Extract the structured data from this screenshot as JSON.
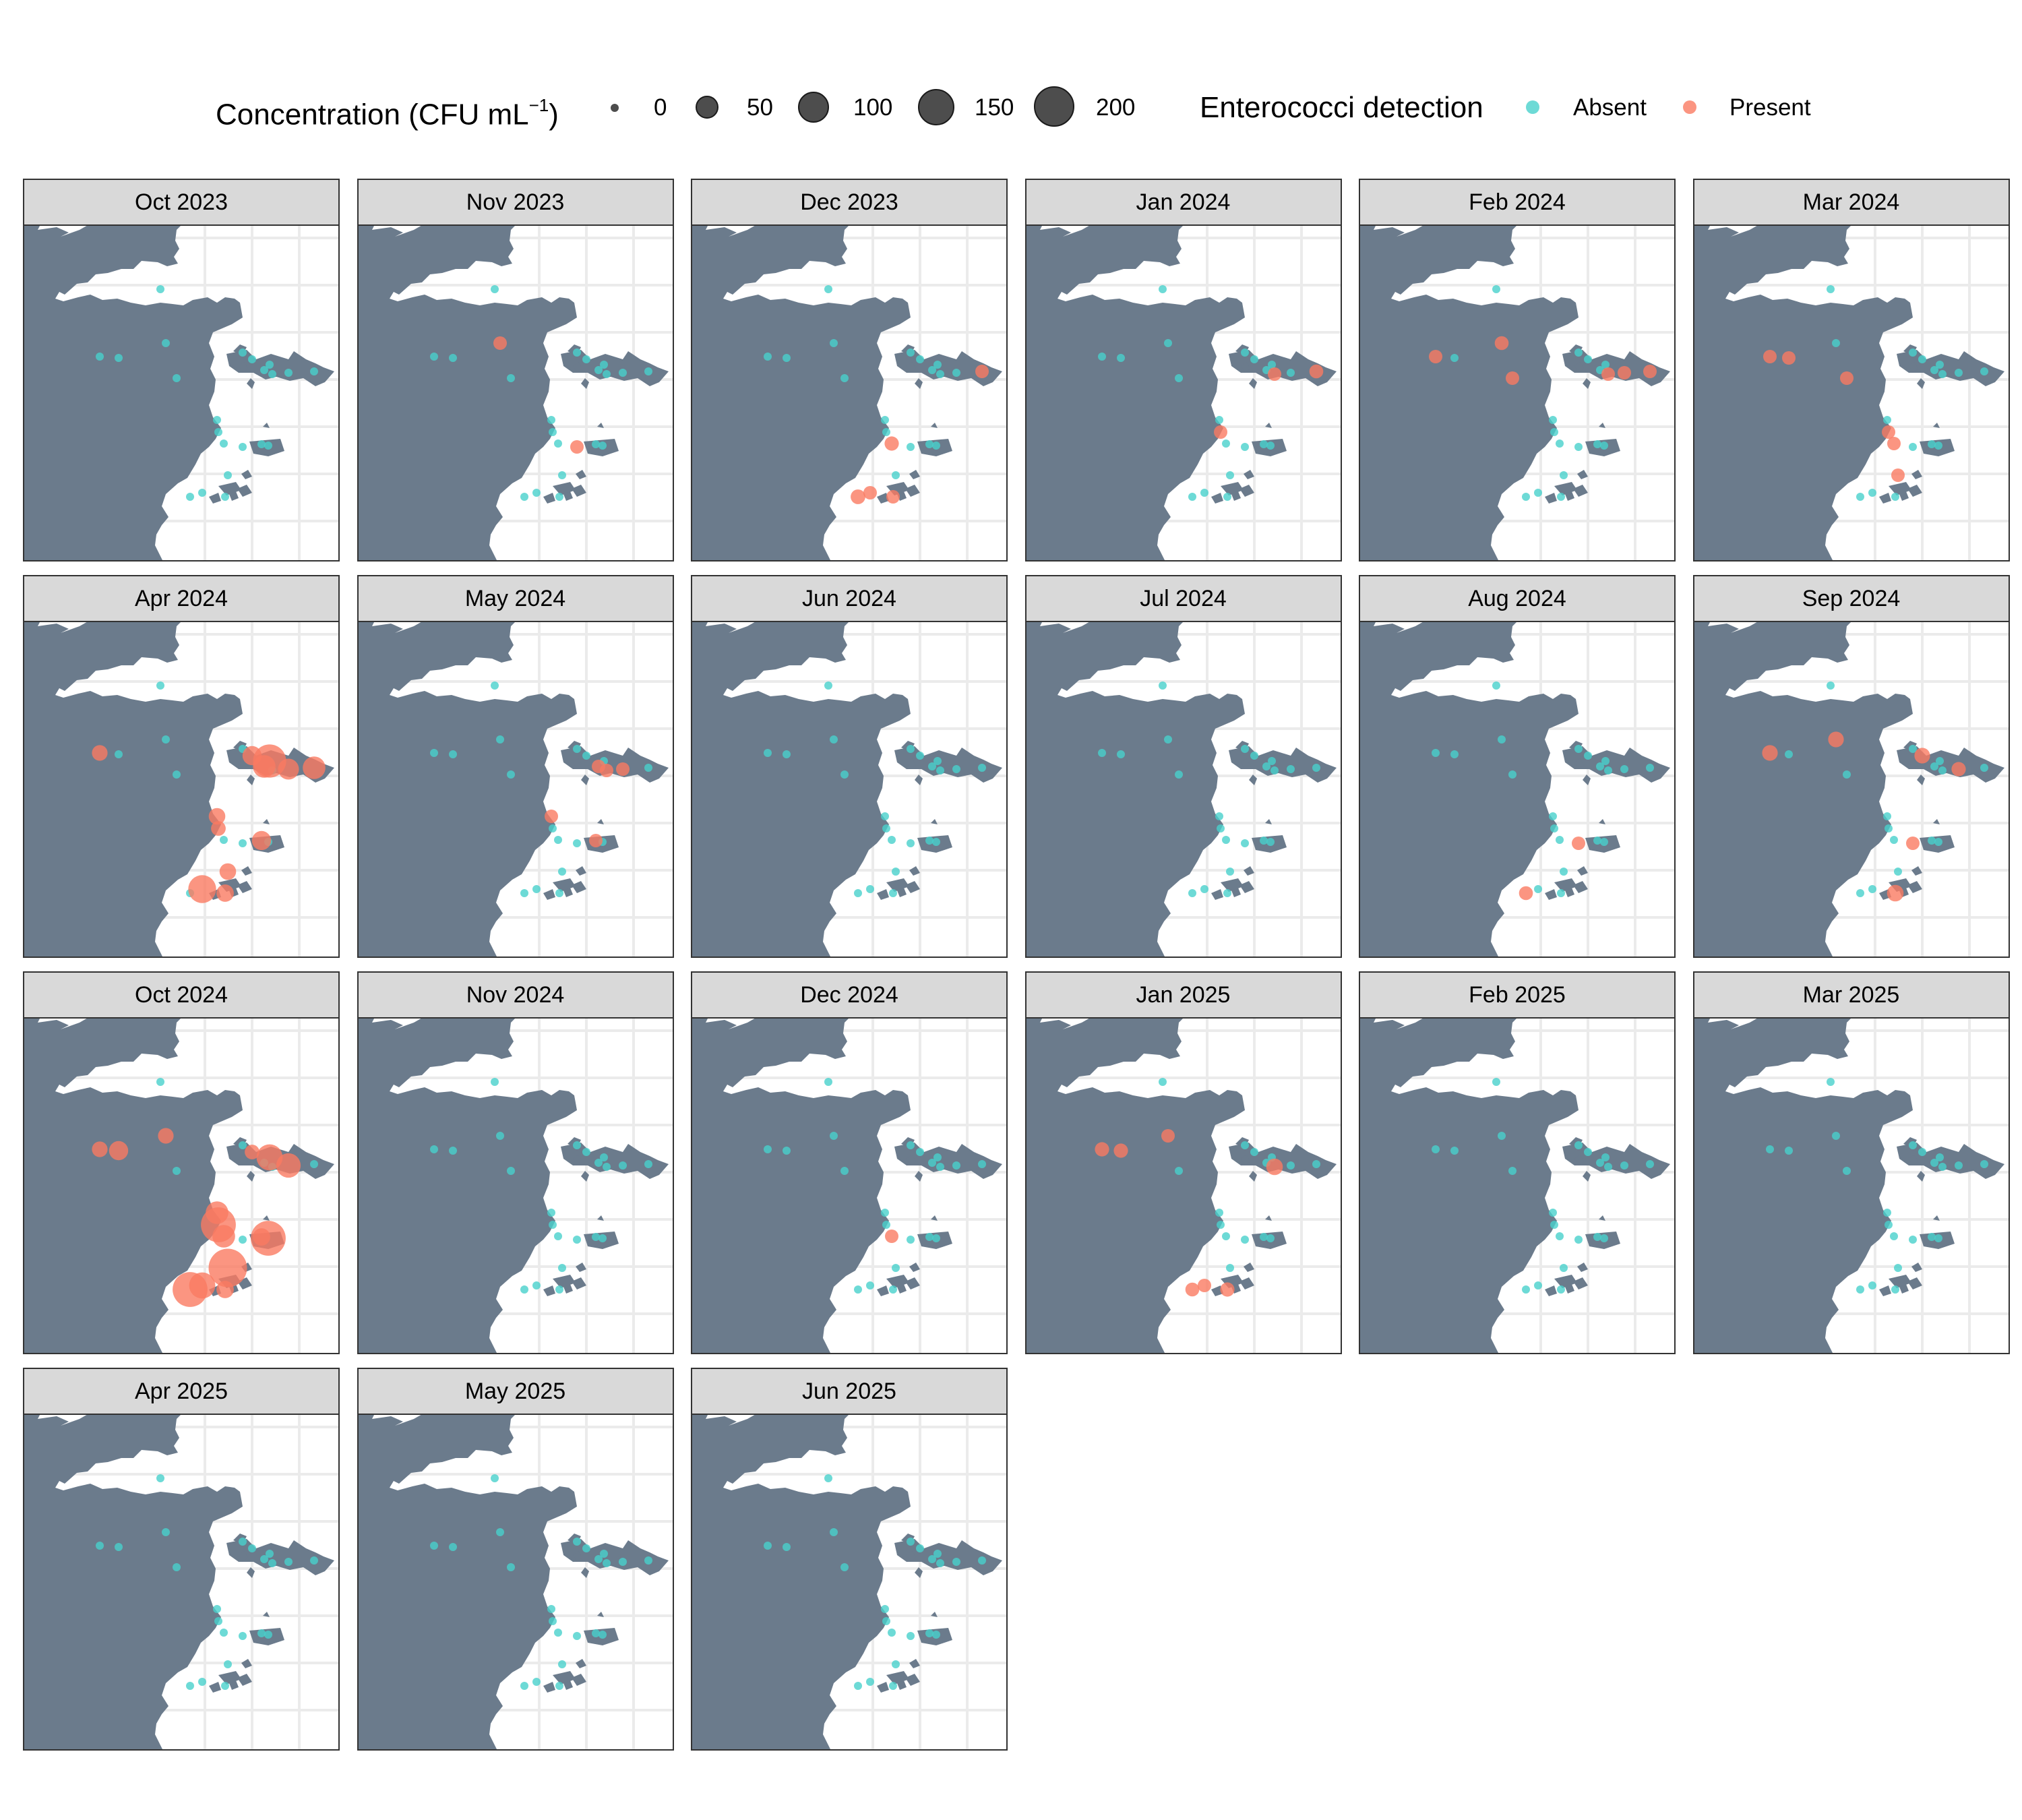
{
  "legend": {
    "concentration_title": "Concentration (CFU mL",
    "concentration_exponent": "−1",
    "concentration_close": ")",
    "size_breaks": [
      "0",
      "50",
      "100",
      "150",
      "200"
    ],
    "detection_title": "Enterococci detection",
    "detection_levels": [
      "Absent",
      "Present"
    ]
  },
  "colors": {
    "absent": "#48d1cc",
    "present": "#fa7a62",
    "land": "#6b7b8c",
    "grid": "#ebebeb",
    "strip": "#d9d9d9",
    "frame": "#333333"
  },
  "months": [
    "Oct 2023",
    "Nov 2023",
    "Dec 2023",
    "Jan 2024",
    "Feb 2024",
    "Mar 2024",
    "Apr 2024",
    "May 2024",
    "Jun 2024",
    "Jul 2024",
    "Aug 2024",
    "Sep 2024",
    "Oct 2024",
    "Nov 2024",
    "Dec 2024",
    "Jan 2025",
    "Feb 2025",
    "Mar 2025",
    "Apr 2025",
    "May 2025",
    "Jun 2025"
  ],
  "presence": {
    "Nov 2023": [
      {
        "site": 1,
        "c": 8
      },
      {
        "site": 15,
        "c": 8
      }
    ],
    "Dec 2023": [
      {
        "site": 11,
        "c": 8
      },
      {
        "site": 14,
        "c": 12
      },
      {
        "site": 19,
        "c": 15
      },
      {
        "site": 20,
        "c": 8
      },
      {
        "site": 21,
        "c": 8
      }
    ],
    "Jan 2024": [
      {
        "site": 9,
        "c": 8
      },
      {
        "site": 11,
        "c": 10
      },
      {
        "site": 13,
        "c": 8
      }
    ],
    "Feb 2024": [
      {
        "site": 1,
        "c": 10
      },
      {
        "site": 2,
        "c": 8
      },
      {
        "site": 4,
        "c": 8
      },
      {
        "site": 9,
        "c": 8
      },
      {
        "site": 10,
        "c": 8
      },
      {
        "site": 11,
        "c": 8
      }
    ],
    "Mar 2024": [
      {
        "site": 2,
        "c": 8
      },
      {
        "site": 3,
        "c": 8
      },
      {
        "site": 4,
        "c": 8
      },
      {
        "site": 13,
        "c": 8
      },
      {
        "site": 14,
        "c": 8
      },
      {
        "site": 18,
        "c": 8
      }
    ],
    "Apr 2024": [
      {
        "site": 2,
        "c": 20
      },
      {
        "site": 6,
        "c": 40
      },
      {
        "site": 7,
        "c": 120
      },
      {
        "site": 8,
        "c": 60
      },
      {
        "site": 10,
        "c": 50
      },
      {
        "site": 11,
        "c": 60
      },
      {
        "site": 12,
        "c": 25
      },
      {
        "site": 13,
        "c": 15
      },
      {
        "site": 16,
        "c": 40
      },
      {
        "site": 18,
        "c": 25
      },
      {
        "site": 20,
        "c": 90
      },
      {
        "site": 21,
        "c": 30
      }
    ],
    "May 2024": [
      {
        "site": 8,
        "c": 8
      },
      {
        "site": 9,
        "c": 8
      },
      {
        "site": 10,
        "c": 8
      },
      {
        "site": 12,
        "c": 8
      },
      {
        "site": 16,
        "c": 8
      }
    ],
    "Aug 2024": [
      {
        "site": 15,
        "c": 8
      },
      {
        "site": 19,
        "c": 10
      }
    ],
    "Sep 2024": [
      {
        "site": 1,
        "c": 20
      },
      {
        "site": 2,
        "c": 20
      },
      {
        "site": 6,
        "c": 20
      },
      {
        "site": 10,
        "c": 12
      },
      {
        "site": 15,
        "c": 8
      },
      {
        "site": 21,
        "c": 25
      }
    ],
    "Oct 2024": [
      {
        "site": 1,
        "c": 20
      },
      {
        "site": 2,
        "c": 20
      },
      {
        "site": 3,
        "c": 40
      },
      {
        "site": 6,
        "c": 15
      },
      {
        "site": 7,
        "c": 80
      },
      {
        "site": 10,
        "c": 70
      },
      {
        "site": 12,
        "c": 60
      },
      {
        "site": 13,
        "c": 130
      },
      {
        "site": 14,
        "c": 60
      },
      {
        "site": 16,
        "c": 30
      },
      {
        "site": 17,
        "c": 130
      },
      {
        "site": 18,
        "c": 150
      },
      {
        "site": 19,
        "c": 130
      },
      {
        "site": 20,
        "c": 80
      },
      {
        "site": 21,
        "c": 30
      }
    ],
    "Dec 2024": [
      {
        "site": 14,
        "c": 8
      }
    ],
    "Jan 2025": [
      {
        "site": 1,
        "c": 8
      },
      {
        "site": 2,
        "c": 12
      },
      {
        "site": 3,
        "c": 12
      },
      {
        "site": 9,
        "c": 25
      },
      {
        "site": 19,
        "c": 10
      },
      {
        "site": 20,
        "c": 8
      },
      {
        "site": 21,
        "c": 12
      }
    ]
  }
}
